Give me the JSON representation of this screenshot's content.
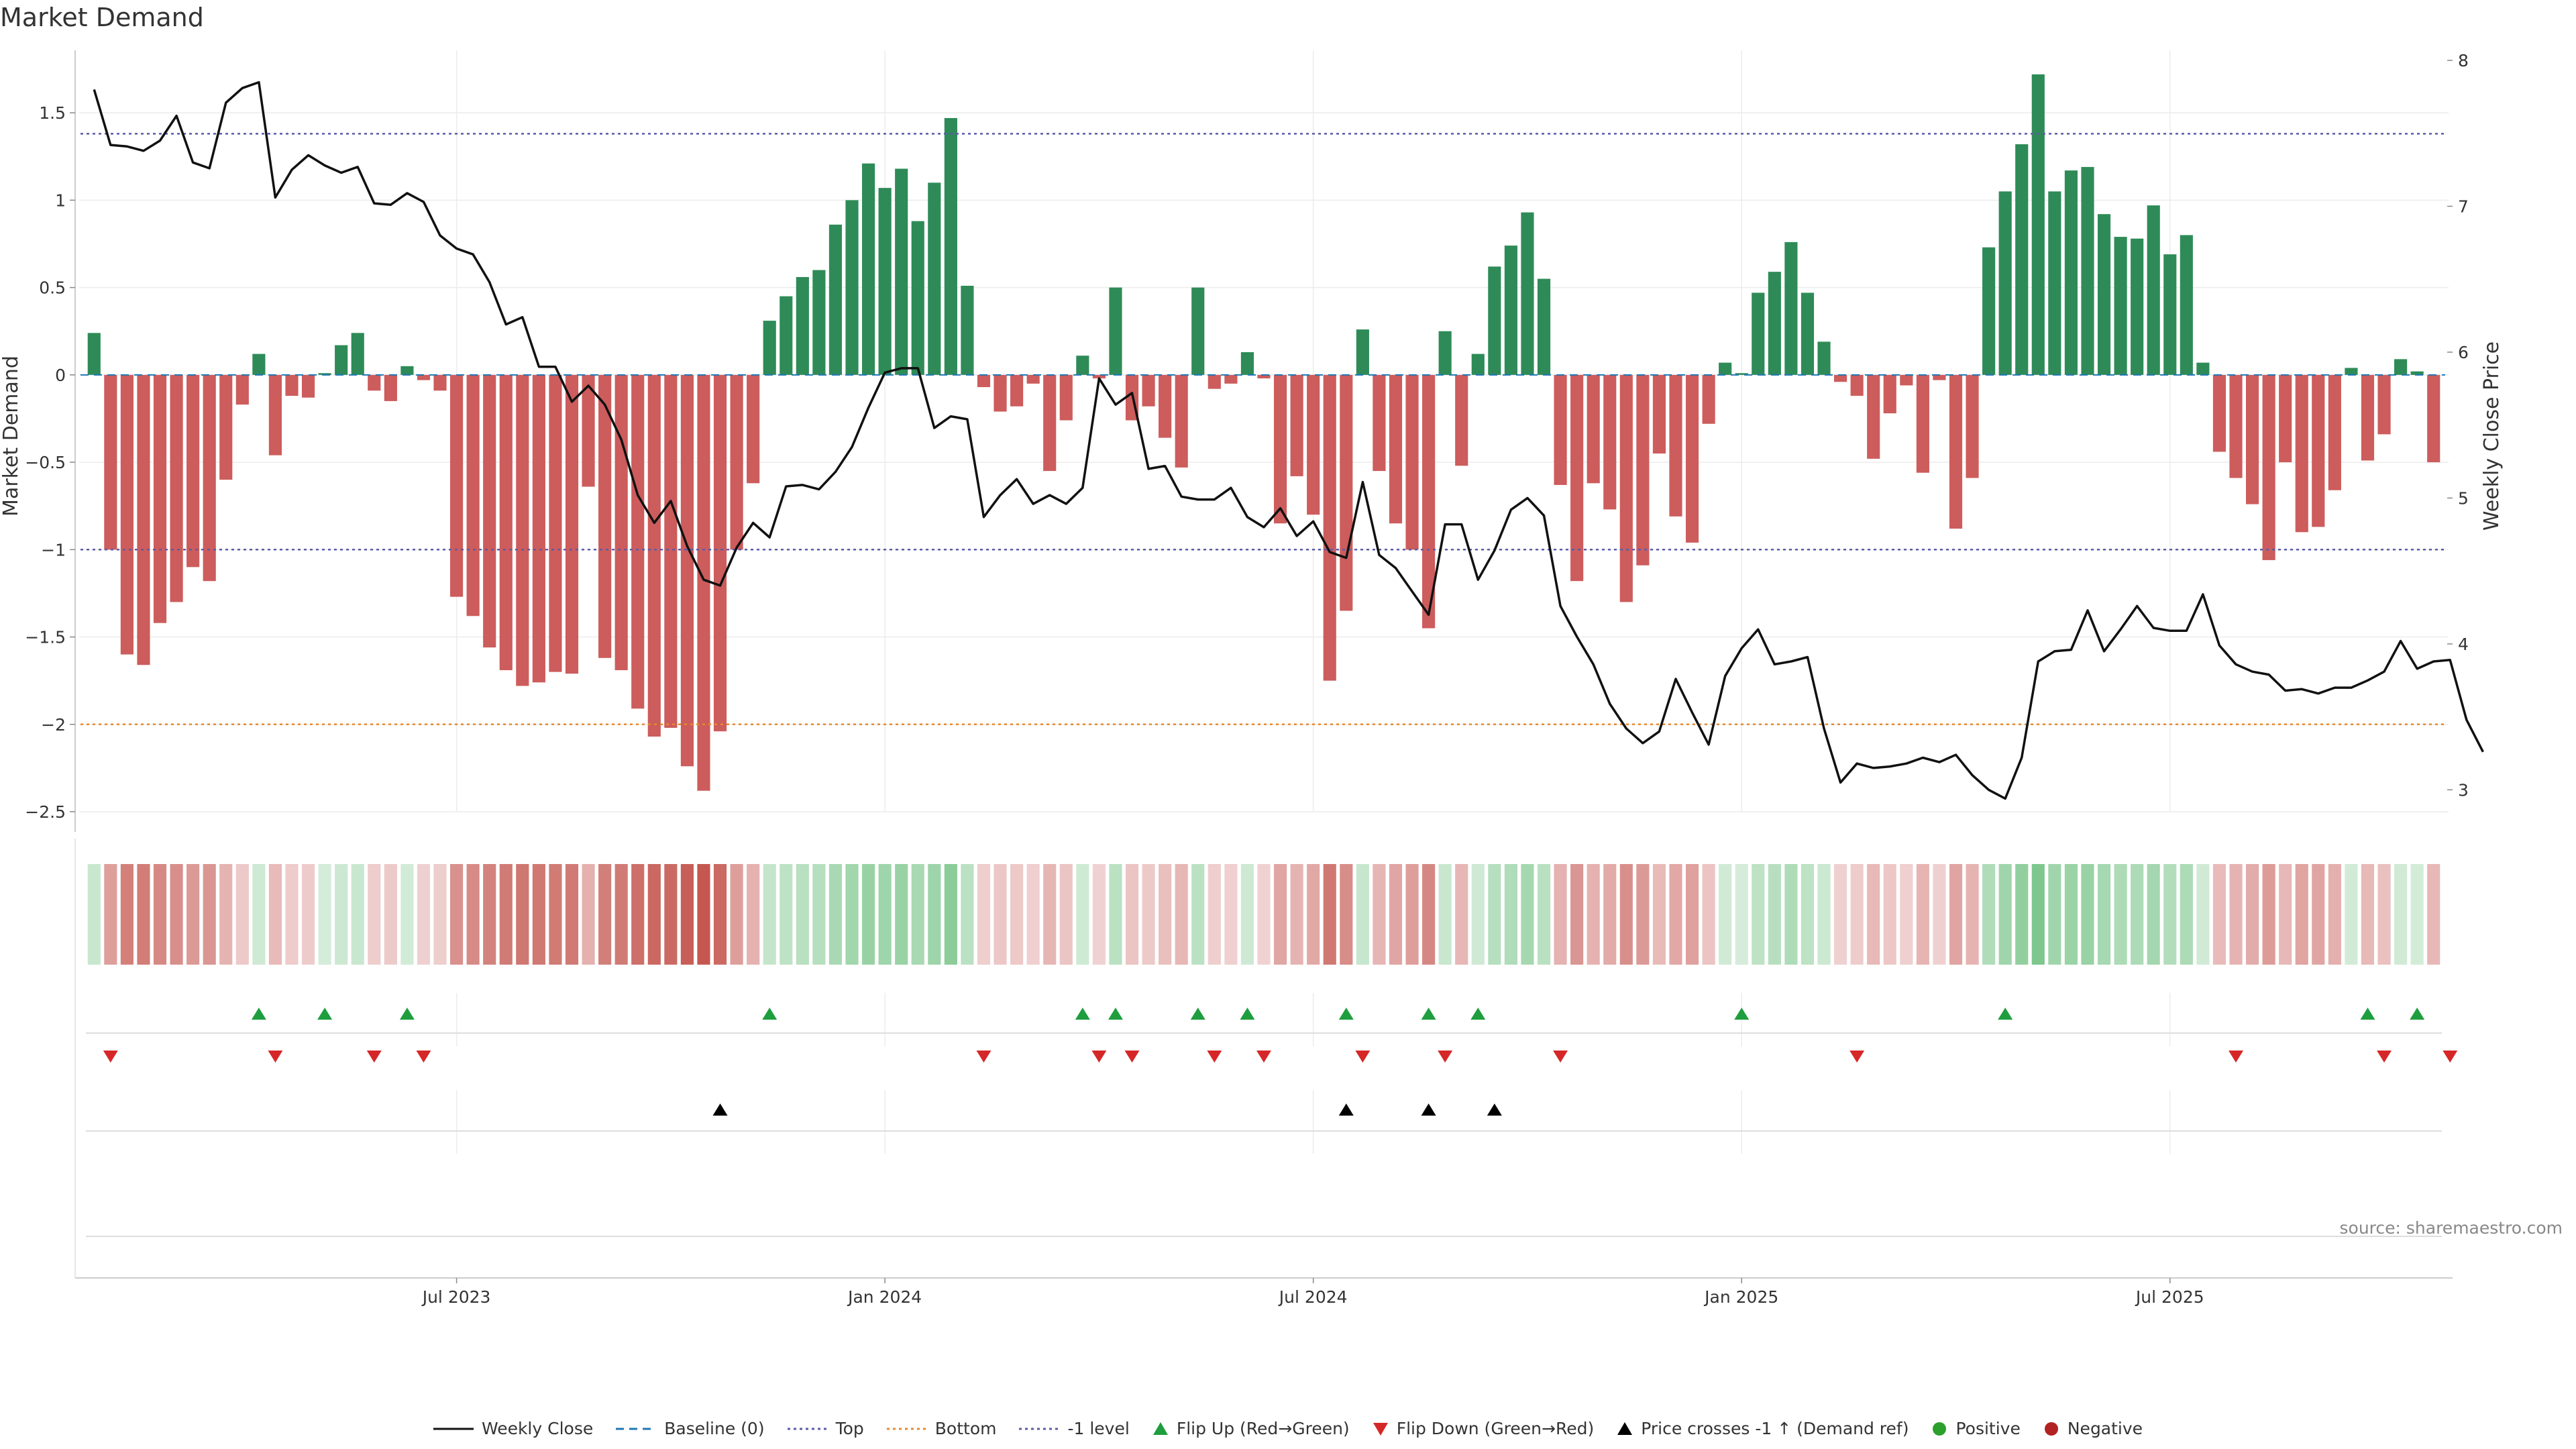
{
  "chart_data": {
    "type": "bar",
    "title": "Market Demand",
    "source": "source: sharemaestro.com",
    "ylabel": "Market Demand",
    "y2label": "Weekly Close Price",
    "ylim": [
      -2.5,
      1.8
    ],
    "y2lim": [
      2.85,
      8
    ],
    "yticks": [
      1.5,
      1,
      0.5,
      0,
      -0.5,
      -1,
      -1.5,
      -2,
      -2.5
    ],
    "yticklabels": [
      "1.5",
      "1",
      "0.5",
      "0",
      "−0.5",
      "−1",
      "−1.5",
      "−2",
      "−2.5"
    ],
    "y2ticks": [
      3,
      4,
      5,
      6,
      7,
      8
    ],
    "xticks": [
      {
        "index": 22,
        "label": "Jul 2023"
      },
      {
        "index": 48,
        "label": "Jan 2024"
      },
      {
        "index": 74,
        "label": "Jul 2024"
      },
      {
        "index": 100,
        "label": "Jan 2025"
      },
      {
        "index": 126,
        "label": "Jul 2025"
      }
    ],
    "reference_lines": [
      {
        "name": "Top",
        "value": 1.38,
        "color": "#5b5ba8"
      },
      {
        "name": "-1 level",
        "value": -1.0,
        "color": "#5b5ba8"
      },
      {
        "name": "Bottom",
        "value": -2.0,
        "color": "#e88a2e"
      }
    ],
    "demand": [
      0.24,
      -1.0,
      -1.6,
      -1.66,
      -1.42,
      -1.3,
      -1.1,
      -1.18,
      -0.6,
      -0.17,
      0.12,
      -0.46,
      -0.12,
      -0.13,
      0.01,
      0.17,
      0.24,
      -0.09,
      -0.15,
      0.05,
      -0.03,
      -0.09,
      -1.27,
      -1.38,
      -1.56,
      -1.69,
      -1.78,
      -1.76,
      -1.7,
      -1.71,
      -0.64,
      -1.62,
      -1.69,
      -1.91,
      -2.07,
      -2.02,
      -2.24,
      -2.38,
      -2.04,
      -1.0,
      -0.62,
      0.31,
      0.45,
      0.56,
      0.6,
      0.86,
      1.0,
      1.21,
      1.07,
      1.18,
      0.88,
      1.1,
      1.47,
      0.51,
      -0.07,
      -0.21,
      -0.18,
      -0.05,
      -0.55,
      -0.26,
      0.11,
      -0.02,
      0.5,
      -0.26,
      -0.18,
      -0.36,
      -0.53,
      0.5,
      -0.08,
      -0.05,
      0.13,
      -0.02,
      -0.85,
      -0.58,
      -0.8,
      -1.75,
      -1.35,
      0.26,
      -0.55,
      -0.85,
      -1.0,
      -1.45,
      0.25,
      -0.52,
      0.12,
      0.62,
      0.74,
      0.93,
      0.55,
      -0.63,
      -1.18,
      -0.62,
      -0.77,
      -1.3,
      -1.09,
      -0.45,
      -0.81,
      -0.96,
      -0.28,
      0.07,
      0.01,
      0.47,
      0.59,
      0.76,
      0.47,
      0.19,
      -0.04,
      -0.12,
      -0.48,
      -0.22,
      -0.06,
      -0.56,
      -0.03,
      -0.88,
      -0.59,
      0.73,
      1.05,
      1.32,
      1.72,
      1.05,
      1.17,
      1.19,
      0.92,
      0.79,
      0.78,
      0.97,
      0.69,
      0.8,
      0.07,
      -0.44,
      -0.59,
      -0.74,
      -1.06,
      -0.5,
      -0.9,
      -0.87,
      -0.66,
      0.04,
      -0.49,
      -0.34,
      0.09,
      0.02,
      -0.5
    ],
    "weekly_close": [
      7.8,
      7.42,
      7.41,
      7.38,
      7.45,
      7.62,
      7.3,
      7.26,
      7.71,
      7.81,
      7.85,
      7.06,
      7.25,
      7.35,
      7.28,
      7.23,
      7.27,
      7.02,
      7.01,
      7.09,
      7.03,
      6.8,
      6.71,
      6.67,
      6.48,
      6.19,
      6.24,
      5.9,
      5.9,
      5.66,
      5.77,
      5.64,
      5.4,
      5.02,
      4.83,
      4.98,
      4.67,
      4.44,
      4.4,
      4.66,
      4.83,
      4.73,
      5.08,
      5.09,
      5.06,
      5.18,
      5.35,
      5.62,
      5.86,
      5.89,
      5.89,
      5.48,
      5.56,
      5.54,
      4.87,
      5.02,
      5.13,
      4.96,
      5.02,
      4.96,
      5.07,
      5.82,
      5.64,
      5.72,
      5.2,
      5.22,
      5.01,
      4.99,
      4.99,
      5.07,
      4.87,
      4.8,
      4.93,
      4.74,
      4.84,
      4.63,
      4.59,
      5.11,
      4.61,
      4.52,
      4.36,
      4.2,
      4.82,
      4.82,
      4.44,
      4.64,
      4.92,
      5.0,
      4.88,
      4.26,
      4.05,
      3.86,
      3.59,
      3.42,
      3.32,
      3.4,
      3.76,
      3.53,
      3.31,
      3.78,
      3.97,
      4.1,
      3.86,
      3.88,
      3.91,
      3.42,
      3.05,
      3.18,
      3.15,
      3.16,
      3.18,
      3.22,
      3.19,
      3.24,
      3.1,
      3.0,
      2.94,
      3.22,
      3.88,
      3.95,
      3.96,
      4.23,
      3.95,
      4.1,
      4.26,
      4.11,
      4.09,
      4.09,
      4.34,
      3.99,
      3.86,
      3.81,
      3.79,
      3.68,
      3.69,
      3.66,
      3.7,
      3.7,
      3.75,
      3.81,
      4.02,
      3.83,
      3.88,
      3.89,
      3.48,
      3.26
    ],
    "flip_up_indices": [
      10,
      14,
      19,
      41,
      60,
      62,
      67,
      70,
      76,
      81,
      84,
      100,
      116,
      138,
      141
    ],
    "flip_down_indices": [
      1,
      11,
      17,
      20,
      54,
      61,
      63,
      68,
      71,
      77,
      82,
      89,
      107,
      130,
      139,
      143
    ],
    "price_cross_indices": [
      38,
      76,
      81,
      85
    ],
    "colors": {
      "positive": "#2e8b57",
      "negative": "#cd5c5c",
      "line": "#111111",
      "flip_up": "#1e9e3e",
      "flip_down": "#d62728",
      "cross": "#000000",
      "positive_dot": "#2ca02c",
      "negative_dot": "#b22222",
      "baseline": "#1f77b4"
    }
  },
  "legend": [
    {
      "label": "Weekly Close",
      "icon": "line-solid",
      "color": "#111111"
    },
    {
      "label": "Baseline (0)",
      "icon": "line-dashed",
      "color": "#1f77b4"
    },
    {
      "label": "Top",
      "icon": "line-dotted",
      "color": "#5b5ba8"
    },
    {
      "label": "Bottom",
      "icon": "line-dotted",
      "color": "#e88a2e"
    },
    {
      "label": "-1 level",
      "icon": "line-dotted",
      "color": "#5b5ba8"
    },
    {
      "label": "Flip Up (Red→Green)",
      "icon": "triangle-up",
      "color": "#1e9e3e"
    },
    {
      "label": "Flip Down (Green→Red)",
      "icon": "triangle-down",
      "color": "#d62728"
    },
    {
      "label": "Price crosses -1 ↑ (Demand ref)",
      "icon": "triangle-up",
      "color": "#000000"
    },
    {
      "label": "Positive",
      "icon": "circle",
      "color": "#2ca02c"
    },
    {
      "label": "Negative",
      "icon": "circle",
      "color": "#b22222"
    }
  ]
}
